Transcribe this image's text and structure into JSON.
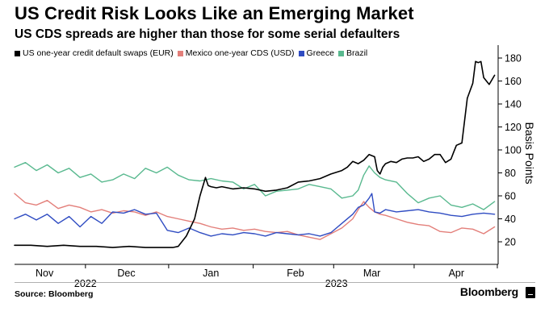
{
  "header": {
    "title": "US Credit Risk Looks Like an Emerging Market",
    "subtitle": "US CDS spreads are higher than those for some serial defaulters"
  },
  "footer": {
    "source": "Source: Bloomberg",
    "brand": "Bloomberg"
  },
  "chart_data": {
    "type": "line",
    "title": "US Credit Risk Looks Like an Emerging Market",
    "subtitle": "US CDS spreads are higher than those for some serial defaulters",
    "ylabel": "Basis Points",
    "y_axis_side": "right",
    "ylim": [
      0,
      185
    ],
    "yticks": [
      20,
      40,
      60,
      80,
      100,
      120,
      140,
      160,
      180
    ],
    "xlim": [
      0,
      177
    ],
    "x_unit": "days since 2022-10-21",
    "month_labels": [
      {
        "label": "Nov",
        "day": 11
      },
      {
        "label": "Dec",
        "day": 41
      },
      {
        "label": "Jan",
        "day": 72
      },
      {
        "label": "Feb",
        "day": 103
      },
      {
        "label": "Mar",
        "day": 131
      },
      {
        "label": "Apr",
        "day": 162
      }
    ],
    "year_labels": [
      {
        "label": "2022",
        "day": 26
      },
      {
        "label": "2023",
        "day": 118
      }
    ],
    "legend_position": "top-left",
    "series": [
      {
        "name": "US one-year credit default swaps (EUR)",
        "color": "#000000",
        "x": [
          0,
          6,
          12,
          18,
          24,
          30,
          36,
          42,
          48,
          54,
          58,
          60,
          63,
          66,
          68,
          70,
          71,
          72,
          74,
          76,
          80,
          84,
          88,
          92,
          96,
          100,
          104,
          108,
          112,
          116,
          120,
          122,
          124,
          126,
          128,
          130,
          132,
          133,
          134,
          135,
          136,
          138,
          140,
          142,
          144,
          146,
          148,
          150,
          152,
          154,
          156,
          158,
          160,
          161,
          162,
          164,
          166,
          168,
          169,
          170,
          171,
          172,
          174,
          176
        ],
        "y": [
          17,
          17,
          16,
          17,
          16,
          16,
          15,
          16,
          15,
          15,
          15,
          16,
          25,
          40,
          60,
          76,
          69,
          68,
          67,
          68,
          66,
          67,
          66,
          64,
          65,
          67,
          72,
          73,
          75,
          79,
          82,
          85,
          90,
          88,
          91,
          96,
          94,
          82,
          79,
          85,
          88,
          90,
          89,
          92,
          93,
          93,
          94,
          90,
          92,
          96,
          96,
          89,
          92,
          98,
          104,
          106,
          145,
          158,
          177,
          176,
          177,
          163,
          157,
          165
        ]
      },
      {
        "name": "Mexico one-year CDS (USD)",
        "color": "#e37f7a",
        "x": [
          0,
          4,
          8,
          12,
          16,
          20,
          24,
          28,
          32,
          36,
          40,
          44,
          48,
          52,
          56,
          60,
          64,
          68,
          72,
          76,
          80,
          84,
          88,
          92,
          96,
          100,
          104,
          108,
          112,
          116,
          120,
          124,
          126,
          128,
          130,
          132,
          134,
          136,
          140,
          144,
          148,
          152,
          156,
          160,
          164,
          168,
          172,
          176
        ],
        "y": [
          62,
          54,
          52,
          56,
          49,
          52,
          50,
          46,
          48,
          45,
          47,
          46,
          43,
          46,
          42,
          40,
          38,
          36,
          33,
          31,
          32,
          30,
          31,
          29,
          28,
          29,
          26,
          24,
          22,
          27,
          32,
          40,
          48,
          55,
          50,
          46,
          44,
          43,
          40,
          37,
          35,
          34,
          29,
          28,
          32,
          31,
          27,
          33
        ]
      },
      {
        "name": "Greece",
        "color": "#2f4cc2",
        "x": [
          0,
          4,
          8,
          12,
          16,
          20,
          24,
          28,
          32,
          36,
          40,
          44,
          48,
          52,
          56,
          60,
          64,
          68,
          72,
          76,
          80,
          84,
          88,
          92,
          96,
          100,
          104,
          108,
          112,
          116,
          120,
          124,
          126,
          128,
          130,
          131,
          132,
          134,
          136,
          140,
          144,
          148,
          152,
          156,
          160,
          164,
          168,
          172,
          176
        ],
        "y": [
          40,
          44,
          39,
          44,
          36,
          42,
          33,
          42,
          36,
          46,
          45,
          48,
          44,
          45,
          30,
          28,
          32,
          28,
          25,
          27,
          26,
          28,
          27,
          25,
          28,
          27,
          26,
          27,
          25,
          28,
          36,
          44,
          50,
          52,
          58,
          62,
          46,
          45,
          48,
          46,
          47,
          48,
          46,
          45,
          43,
          42,
          44,
          45,
          44
        ]
      },
      {
        "name": "Brazil",
        "color": "#59b98f",
        "x": [
          0,
          4,
          8,
          12,
          16,
          20,
          24,
          28,
          32,
          36,
          40,
          44,
          48,
          52,
          56,
          60,
          64,
          68,
          72,
          76,
          80,
          84,
          88,
          92,
          96,
          100,
          104,
          108,
          112,
          116,
          120,
          124,
          126,
          128,
          130,
          132,
          134,
          136,
          140,
          144,
          148,
          152,
          156,
          160,
          164,
          168,
          172,
          176
        ],
        "y": [
          85,
          89,
          82,
          87,
          80,
          84,
          76,
          79,
          72,
          74,
          79,
          75,
          84,
          80,
          85,
          78,
          74,
          73,
          75,
          73,
          72,
          66,
          70,
          60,
          64,
          65,
          66,
          70,
          68,
          66,
          58,
          60,
          65,
          78,
          86,
          80,
          76,
          74,
          72,
          62,
          54,
          58,
          60,
          52,
          50,
          53,
          48,
          55
        ]
      }
    ]
  }
}
